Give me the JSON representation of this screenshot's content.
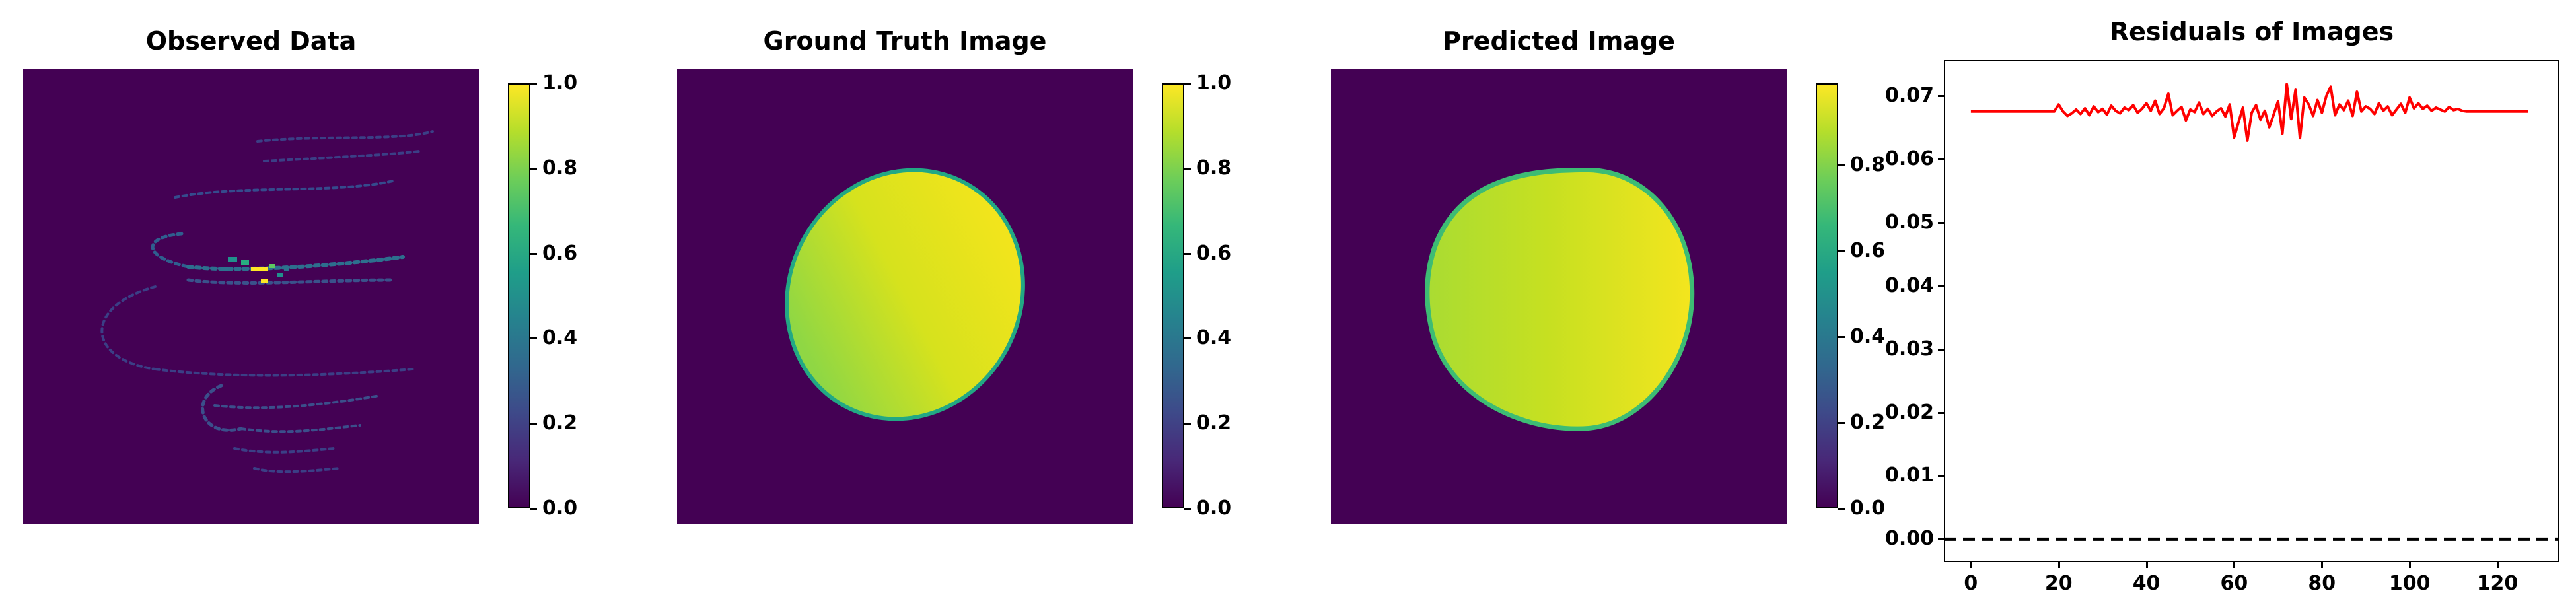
{
  "panels": {
    "observed": {
      "title": "Observed Data"
    },
    "ground_truth": {
      "title": "Ground Truth Image"
    },
    "predicted": {
      "title": "Predicted Image"
    },
    "residuals": {
      "title": "Residuals of Images"
    }
  },
  "colors": {
    "viridis_low": "#440154",
    "viridis_mid_low": "#3b528b",
    "viridis_mid": "#21918c",
    "viridis_mid_high": "#5ec962",
    "viridis_high": "#fde725",
    "residual_line": "#ff0000",
    "zero_line": "#000000"
  },
  "chart_data": [
    {
      "type": "heatmap",
      "title": "Observed Data",
      "colorbar": {
        "range": [
          0.0,
          1.0
        ],
        "ticks": [
          "0.0",
          "0.2",
          "0.4",
          "0.6",
          "0.8",
          "1.0"
        ]
      }
    },
    {
      "type": "heatmap",
      "title": "Ground Truth Image",
      "colorbar": {
        "range": [
          0.0,
          1.0
        ],
        "ticks": [
          "0.0",
          "0.2",
          "0.4",
          "0.6",
          "0.8",
          "1.0"
        ]
      }
    },
    {
      "type": "heatmap",
      "title": "Predicted Image",
      "colorbar": {
        "range": [
          0.0,
          0.99
        ],
        "ticks": [
          "0.0",
          "0.2",
          "0.4",
          "0.6",
          "0.8"
        ]
      }
    },
    {
      "type": "line",
      "title": "Residuals of Images",
      "xlabel": "",
      "ylabel": "",
      "xlim": [
        -6,
        134
      ],
      "ylim": [
        -0.0035,
        0.0755
      ],
      "xticks": [
        "0",
        "20",
        "40",
        "60",
        "80",
        "100",
        "120"
      ],
      "yticks": [
        "0.00",
        "0.01",
        "0.02",
        "0.03",
        "0.04",
        "0.05",
        "0.06",
        "0.07"
      ],
      "x": [
        0,
        1,
        2,
        3,
        4,
        5,
        6,
        7,
        8,
        9,
        10,
        11,
        12,
        13,
        14,
        15,
        16,
        17,
        18,
        19,
        20,
        21,
        22,
        23,
        24,
        25,
        26,
        27,
        28,
        29,
        30,
        31,
        32,
        33,
        34,
        35,
        36,
        37,
        38,
        39,
        40,
        41,
        42,
        43,
        44,
        45,
        46,
        47,
        48,
        49,
        50,
        51,
        52,
        53,
        54,
        55,
        56,
        57,
        58,
        59,
        60,
        61,
        62,
        63,
        64,
        65,
        66,
        67,
        68,
        69,
        70,
        71,
        72,
        73,
        74,
        75,
        76,
        77,
        78,
        79,
        80,
        81,
        82,
        83,
        84,
        85,
        86,
        87,
        88,
        89,
        90,
        91,
        92,
        93,
        94,
        95,
        96,
        97,
        98,
        99,
        100,
        101,
        102,
        103,
        104,
        105,
        106,
        107,
        108,
        109,
        110,
        111,
        112,
        113,
        114,
        115,
        116,
        117,
        118,
        119,
        120,
        121,
        122,
        123,
        124,
        125,
        126,
        127
      ],
      "series": [
        {
          "values": [
            0.0675,
            0.0675,
            0.0675,
            0.0675,
            0.0675,
            0.0675,
            0.0675,
            0.0675,
            0.0675,
            0.0675,
            0.0675,
            0.0675,
            0.0675,
            0.0675,
            0.0675,
            0.0675,
            0.0675,
            0.0675,
            0.0675,
            0.0675,
            0.0686,
            0.0675,
            0.0668,
            0.0672,
            0.0678,
            0.0671,
            0.068,
            0.0669,
            0.0683,
            0.0674,
            0.0679,
            0.067,
            0.0684,
            0.0676,
            0.0672,
            0.0681,
            0.0677,
            0.0685,
            0.0673,
            0.0679,
            0.0688,
            0.0676,
            0.0692,
            0.0671,
            0.068,
            0.0703,
            0.0669,
            0.0676,
            0.0682,
            0.0661,
            0.0678,
            0.0674,
            0.0689,
            0.0671,
            0.0679,
            0.0668,
            0.0675,
            0.068,
            0.0667,
            0.0686,
            0.0634,
            0.0658,
            0.0681,
            0.0629,
            0.0673,
            0.0685,
            0.0662,
            0.0676,
            0.065,
            0.067,
            0.0691,
            0.064,
            0.0718,
            0.0663,
            0.0709,
            0.0633,
            0.0697,
            0.0686,
            0.0668,
            0.0693,
            0.0673,
            0.0699,
            0.0714,
            0.0669,
            0.0686,
            0.0677,
            0.0692,
            0.0668,
            0.0706,
            0.0675,
            0.0683,
            0.0679,
            0.0671,
            0.0688,
            0.0676,
            0.0683,
            0.0669,
            0.0678,
            0.0687,
            0.0673,
            0.0697,
            0.068,
            0.0688,
            0.0679,
            0.0684,
            0.0676,
            0.0681,
            0.0678,
            0.0675,
            0.0682,
            0.0677,
            0.0679,
            0.0676,
            0.0675,
            0.0675,
            0.0675,
            0.0675,
            0.0675,
            0.0675,
            0.0675,
            0.0675,
            0.0675,
            0.0675,
            0.0675,
            0.0675,
            0.0675,
            0.0675,
            0.0675
          ]
        },
        {
          "values": [
            0,
            0
          ],
          "x": [
            -6,
            134
          ],
          "style": "dashed"
        }
      ]
    }
  ]
}
